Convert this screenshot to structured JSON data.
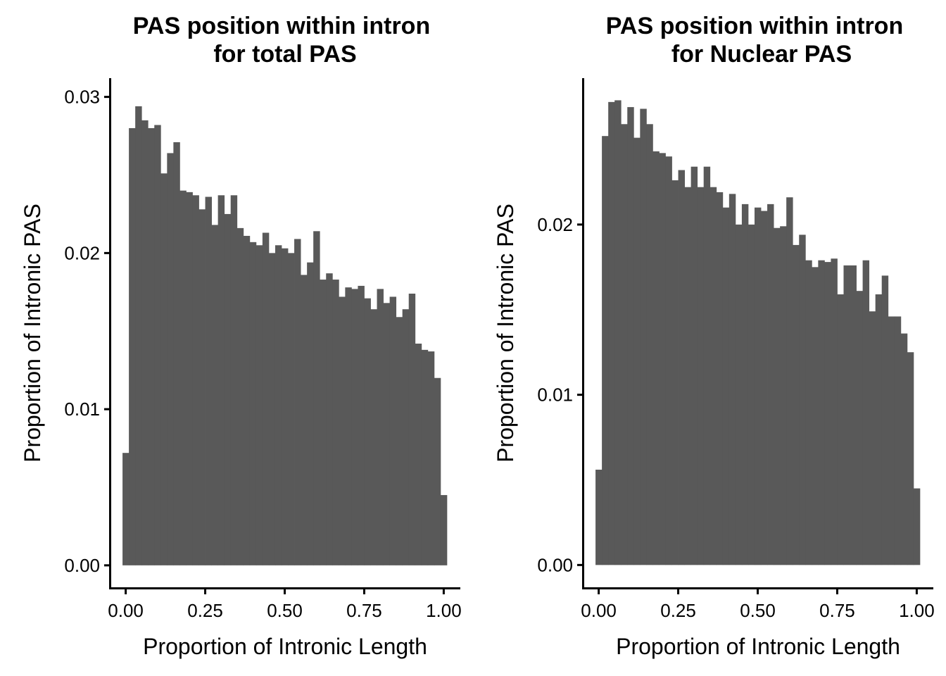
{
  "colors": {
    "bar": "#595959",
    "axis": "#000000",
    "background": "#ffffff"
  },
  "chart_data": [
    {
      "type": "bar",
      "title": [
        "PAS position within intron",
        "for total PAS"
      ],
      "xlabel": "Proportion of Intronic Length",
      "ylabel": "Proportion of Intronic PAS",
      "xlim": [
        -0.05,
        1.05
      ],
      "ylim": [
        -0.00145,
        0.0312
      ],
      "x_ticks": [
        0,
        0.25,
        0.5,
        0.75,
        1
      ],
      "x_tick_labels": [
        "0.00",
        "0.25",
        "0.50",
        "0.75",
        "1.00"
      ],
      "y_ticks": [
        0,
        0.01,
        0.02,
        0.03
      ],
      "y_tick_labels": [
        "0.00",
        "0.01",
        "0.02",
        "0.03"
      ],
      "grid": false,
      "legend": "none",
      "bin_width": 0.02,
      "bin_centers": [
        0.0,
        0.02,
        0.04,
        0.06,
        0.08,
        0.1,
        0.12,
        0.14,
        0.16,
        0.18,
        0.2,
        0.22,
        0.24,
        0.26,
        0.28,
        0.3,
        0.32,
        0.34,
        0.36,
        0.38,
        0.4,
        0.42,
        0.44,
        0.46,
        0.48,
        0.5,
        0.52,
        0.54,
        0.56,
        0.58,
        0.6,
        0.62,
        0.64,
        0.66,
        0.68,
        0.7,
        0.72,
        0.74,
        0.76,
        0.78,
        0.8,
        0.82,
        0.84,
        0.86,
        0.88,
        0.9,
        0.92,
        0.94,
        0.96,
        0.98,
        1.0
      ],
      "values": [
        0.0072,
        0.028,
        0.0294,
        0.0285,
        0.028,
        0.0282,
        0.0251,
        0.0264,
        0.0271,
        0.024,
        0.0239,
        0.0237,
        0.0228,
        0.0236,
        0.0218,
        0.0237,
        0.0225,
        0.0237,
        0.0216,
        0.0211,
        0.0207,
        0.0205,
        0.0213,
        0.02,
        0.0205,
        0.0203,
        0.02,
        0.0209,
        0.0186,
        0.0194,
        0.0214,
        0.0183,
        0.0187,
        0.0183,
        0.0172,
        0.0178,
        0.0177,
        0.0179,
        0.0171,
        0.0164,
        0.0177,
        0.0168,
        0.0172,
        0.0159,
        0.0164,
        0.0174,
        0.0142,
        0.0138,
        0.0137,
        0.012,
        0.0045
      ]
    },
    {
      "type": "bar",
      "title": [
        "PAS position within intron",
        "for Nuclear PAS"
      ],
      "xlabel": "Proportion of Intronic Length",
      "ylabel": "Proportion of Intronic PAS",
      "xlim": [
        -0.05,
        1.05
      ],
      "ylim": [
        -0.00135,
        0.0286
      ],
      "x_ticks": [
        0,
        0.25,
        0.5,
        0.75,
        1
      ],
      "x_tick_labels": [
        "0.00",
        "0.25",
        "0.50",
        "0.75",
        "1.00"
      ],
      "y_ticks": [
        0,
        0.01,
        0.02
      ],
      "y_tick_labels": [
        "0.00",
        "0.01",
        "0.02"
      ],
      "grid": false,
      "legend": "none",
      "bin_width": 0.02,
      "bin_centers": [
        0.0,
        0.02,
        0.04,
        0.06,
        0.08,
        0.1,
        0.12,
        0.14,
        0.16,
        0.18,
        0.2,
        0.22,
        0.24,
        0.26,
        0.28,
        0.3,
        0.32,
        0.34,
        0.36,
        0.38,
        0.4,
        0.42,
        0.44,
        0.46,
        0.48,
        0.5,
        0.52,
        0.54,
        0.56,
        0.58,
        0.6,
        0.62,
        0.64,
        0.66,
        0.68,
        0.7,
        0.72,
        0.74,
        0.76,
        0.78,
        0.8,
        0.82,
        0.84,
        0.86,
        0.88,
        0.9,
        0.92,
        0.94,
        0.96,
        0.98,
        1.0
      ],
      "values": [
        0.0056,
        0.0252,
        0.0272,
        0.0273,
        0.0259,
        0.0269,
        0.0251,
        0.0268,
        0.0259,
        0.0243,
        0.0242,
        0.024,
        0.0226,
        0.0232,
        0.0222,
        0.0234,
        0.0222,
        0.0234,
        0.0222,
        0.0219,
        0.021,
        0.0218,
        0.02,
        0.0212,
        0.02,
        0.021,
        0.0208,
        0.0212,
        0.0198,
        0.0199,
        0.0216,
        0.0188,
        0.0194,
        0.0179,
        0.0175,
        0.0179,
        0.0178,
        0.018,
        0.0159,
        0.0176,
        0.0176,
        0.0161,
        0.0179,
        0.0149,
        0.0159,
        0.017,
        0.0146,
        0.0146,
        0.0136,
        0.0125,
        0.0045
      ]
    }
  ]
}
